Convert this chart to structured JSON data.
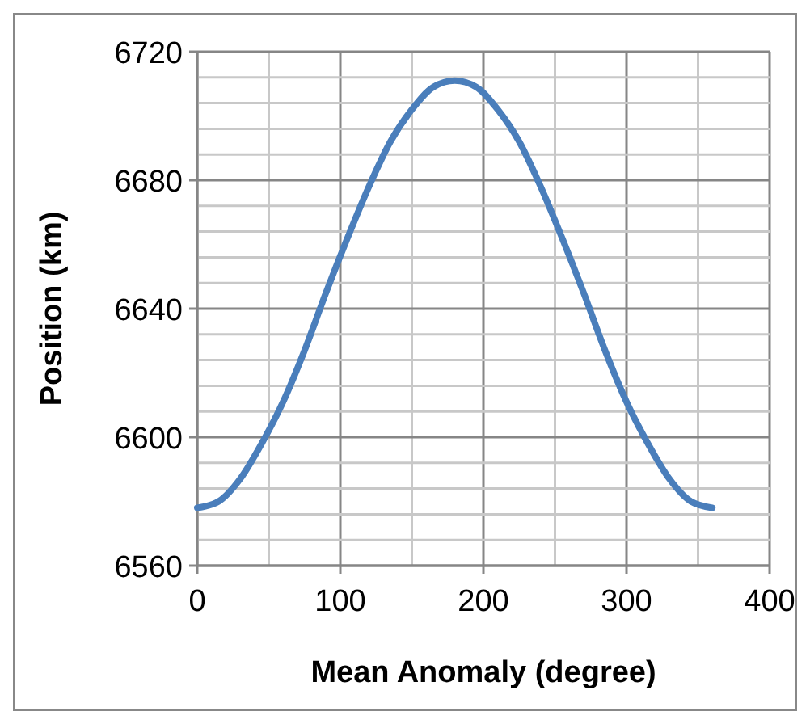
{
  "chart_data": {
    "type": "line",
    "xlabel": "Mean Anomaly (degree)",
    "ylabel": "Position (km)",
    "x": [
      0,
      15,
      30,
      45,
      60,
      75,
      90,
      105,
      120,
      135,
      150,
      165,
      180,
      195,
      210,
      225,
      240,
      255,
      270,
      285,
      300,
      315,
      330,
      345,
      360
    ],
    "series": [
      {
        "color": "#4a7ebb",
        "values": [
          6578,
          6580,
          6587,
          6598,
          6611,
          6627,
          6645,
          6662,
          6678,
          6692,
          6702,
          6709,
          6711,
          6709,
          6702,
          6692,
          6678,
          6662,
          6645,
          6627,
          6611,
          6598,
          6587,
          6580,
          6578
        ]
      }
    ],
    "xlim": [
      0,
      400
    ],
    "xticks": [
      0,
      {
        "value": 50,
        "label": null
      },
      100,
      {
        "value": 150,
        "label": null
      },
      200,
      {
        "value": 250,
        "label": null
      },
      300,
      {
        "value": 350,
        "label": null
      },
      400
    ],
    "ylim": [
      6560,
      6720
    ],
    "yticks": [
      6560,
      {
        "value": 6568,
        "label": null
      },
      {
        "value": 6576,
        "label": null
      },
      {
        "value": 6584,
        "label": null
      },
      {
        "value": 6592,
        "label": null
      },
      6600,
      {
        "value": 6608,
        "label": null
      },
      {
        "value": 6616,
        "label": null
      },
      {
        "value": 6624,
        "label": null
      },
      {
        "value": 6632,
        "label": null
      },
      6640,
      {
        "value": 6648,
        "label": null
      },
      {
        "value": 6656,
        "label": null
      },
      {
        "value": 6664,
        "label": null
      },
      {
        "value": 6672,
        "label": null
      },
      6680,
      {
        "value": 6688,
        "label": null
      },
      {
        "value": 6696,
        "label": null
      },
      {
        "value": 6704,
        "label": null
      },
      {
        "value": 6712,
        "label": null
      },
      6720
    ],
    "grid": true,
    "marker": "none",
    "line_style": "solid"
  }
}
